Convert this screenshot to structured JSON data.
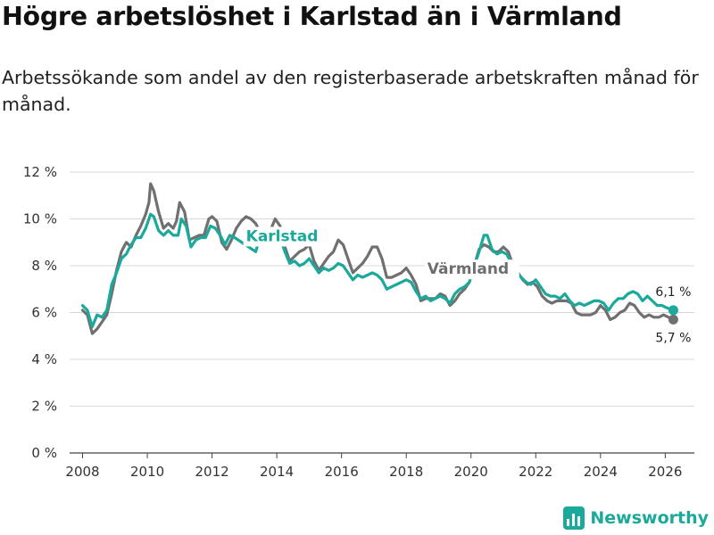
{
  "title": "Högre arbetslöshet i Karlstad än i Värmland",
  "subtitle": "Arbetssökande som andel av den registerbaserade arbetskraften månad för månad.",
  "brand": "Newsworthy",
  "colors": {
    "karlstad": "#1aa99b",
    "varmland": "#707070",
    "grid": "#d8d8d8"
  },
  "chart_data": {
    "type": "line",
    "title": "Högre arbetslöshet i Karlstad än i Värmland",
    "xlabel": "",
    "ylabel": "",
    "xlim": [
      2007.6,
      2026.9
    ],
    "ylim": [
      0,
      12
    ],
    "x_ticks": [
      2008,
      2010,
      2012,
      2014,
      2016,
      2018,
      2020,
      2022,
      2024,
      2026
    ],
    "x_tick_labels": [
      "2008",
      "2010",
      "2012",
      "2014",
      "2016",
      "2018",
      "2020",
      "2022",
      "2024",
      "2026"
    ],
    "y_ticks": [
      0,
      2,
      4,
      6,
      8,
      10,
      12
    ],
    "y_tick_labels": [
      "0 %",
      "2 %",
      "4 %",
      "6 %",
      "8 %",
      "10 %",
      "12 %"
    ],
    "series": [
      {
        "name": "Värmland",
        "label": "Värmland",
        "color": "#707070",
        "end_label": "5,7 %",
        "points": [
          [
            2008.0,
            6.1
          ],
          [
            2008.15,
            5.9
          ],
          [
            2008.3,
            5.1
          ],
          [
            2008.45,
            5.3
          ],
          [
            2008.6,
            5.6
          ],
          [
            2008.75,
            5.9
          ],
          [
            2008.9,
            6.8
          ],
          [
            2009.05,
            7.8
          ],
          [
            2009.2,
            8.6
          ],
          [
            2009.35,
            9.0
          ],
          [
            2009.5,
            8.8
          ],
          [
            2009.65,
            9.3
          ],
          [
            2009.8,
            9.7
          ],
          [
            2009.95,
            10.2
          ],
          [
            2010.05,
            10.7
          ],
          [
            2010.1,
            11.5
          ],
          [
            2010.2,
            11.2
          ],
          [
            2010.35,
            10.3
          ],
          [
            2010.5,
            9.6
          ],
          [
            2010.65,
            9.8
          ],
          [
            2010.8,
            9.6
          ],
          [
            2010.9,
            9.9
          ],
          [
            2011.0,
            10.7
          ],
          [
            2011.15,
            10.3
          ],
          [
            2011.3,
            9.1
          ],
          [
            2011.45,
            9.2
          ],
          [
            2011.6,
            9.3
          ],
          [
            2011.75,
            9.3
          ],
          [
            2011.9,
            10.0
          ],
          [
            2012.0,
            10.1
          ],
          [
            2012.15,
            9.9
          ],
          [
            2012.3,
            9.0
          ],
          [
            2012.45,
            8.7
          ],
          [
            2012.6,
            9.1
          ],
          [
            2012.75,
            9.6
          ],
          [
            2012.9,
            9.9
          ],
          [
            2013.05,
            10.1
          ],
          [
            2013.2,
            10.0
          ],
          [
            2013.35,
            9.8
          ],
          [
            2013.5,
            9.4
          ],
          [
            2013.65,
            9.2
          ],
          [
            2013.8,
            9.5
          ],
          [
            2013.95,
            10.0
          ],
          [
            2014.1,
            9.7
          ],
          [
            2014.25,
            8.8
          ],
          [
            2014.4,
            8.2
          ],
          [
            2014.55,
            8.4
          ],
          [
            2014.7,
            8.6
          ],
          [
            2014.85,
            8.7
          ],
          [
            2015.0,
            8.9
          ],
          [
            2015.15,
            8.2
          ],
          [
            2015.3,
            7.8
          ],
          [
            2015.45,
            8.1
          ],
          [
            2015.6,
            8.4
          ],
          [
            2015.75,
            8.6
          ],
          [
            2015.9,
            9.1
          ],
          [
            2016.05,
            8.9
          ],
          [
            2016.2,
            8.3
          ],
          [
            2016.35,
            7.7
          ],
          [
            2016.5,
            7.9
          ],
          [
            2016.65,
            8.1
          ],
          [
            2016.8,
            8.4
          ],
          [
            2016.95,
            8.8
          ],
          [
            2017.1,
            8.8
          ],
          [
            2017.25,
            8.3
          ],
          [
            2017.4,
            7.5
          ],
          [
            2017.55,
            7.5
          ],
          [
            2017.7,
            7.6
          ],
          [
            2017.85,
            7.7
          ],
          [
            2018.0,
            7.9
          ],
          [
            2018.15,
            7.6
          ],
          [
            2018.3,
            7.2
          ],
          [
            2018.45,
            6.5
          ],
          [
            2018.6,
            6.6
          ],
          [
            2018.75,
            6.6
          ],
          [
            2018.9,
            6.6
          ],
          [
            2019.05,
            6.8
          ],
          [
            2019.2,
            6.7
          ],
          [
            2019.35,
            6.3
          ],
          [
            2019.5,
            6.5
          ],
          [
            2019.65,
            6.8
          ],
          [
            2019.8,
            7.0
          ],
          [
            2019.95,
            7.3
          ],
          [
            2020.1,
            8.0
          ],
          [
            2020.25,
            8.7
          ],
          [
            2020.4,
            8.9
          ],
          [
            2020.55,
            8.8
          ],
          [
            2020.7,
            8.6
          ],
          [
            2020.85,
            8.6
          ],
          [
            2021.0,
            8.8
          ],
          [
            2021.15,
            8.6
          ],
          [
            2021.3,
            8.0
          ],
          [
            2021.45,
            7.7
          ],
          [
            2021.6,
            7.4
          ],
          [
            2021.75,
            7.2
          ],
          [
            2021.9,
            7.3
          ],
          [
            2022.05,
            7.1
          ],
          [
            2022.2,
            6.7
          ],
          [
            2022.35,
            6.5
          ],
          [
            2022.5,
            6.4
          ],
          [
            2022.65,
            6.5
          ],
          [
            2022.8,
            6.5
          ],
          [
            2022.95,
            6.5
          ],
          [
            2023.1,
            6.4
          ],
          [
            2023.25,
            6.0
          ],
          [
            2023.4,
            5.9
          ],
          [
            2023.55,
            5.9
          ],
          [
            2023.7,
            5.9
          ],
          [
            2023.85,
            6.0
          ],
          [
            2024.0,
            6.3
          ],
          [
            2024.15,
            6.1
          ],
          [
            2024.3,
            5.7
          ],
          [
            2024.45,
            5.8
          ],
          [
            2024.6,
            6.0
          ],
          [
            2024.75,
            6.1
          ],
          [
            2024.9,
            6.4
          ],
          [
            2025.05,
            6.3
          ],
          [
            2025.2,
            6.0
          ],
          [
            2025.35,
            5.8
          ],
          [
            2025.5,
            5.9
          ],
          [
            2025.65,
            5.8
          ],
          [
            2025.8,
            5.8
          ],
          [
            2025.95,
            5.9
          ],
          [
            2026.1,
            5.8
          ],
          [
            2026.25,
            5.7
          ]
        ]
      },
      {
        "name": "Karlstad",
        "label": "Karlstad",
        "color": "#1aa99b",
        "end_label": "6,1 %",
        "points": [
          [
            2008.0,
            6.3
          ],
          [
            2008.15,
            6.1
          ],
          [
            2008.3,
            5.4
          ],
          [
            2008.45,
            5.9
          ],
          [
            2008.6,
            5.8
          ],
          [
            2008.75,
            6.1
          ],
          [
            2008.9,
            7.2
          ],
          [
            2009.05,
            7.7
          ],
          [
            2009.2,
            8.3
          ],
          [
            2009.35,
            8.5
          ],
          [
            2009.5,
            8.9
          ],
          [
            2009.65,
            9.2
          ],
          [
            2009.8,
            9.2
          ],
          [
            2009.95,
            9.6
          ],
          [
            2010.1,
            10.2
          ],
          [
            2010.2,
            10.1
          ],
          [
            2010.35,
            9.5
          ],
          [
            2010.5,
            9.3
          ],
          [
            2010.65,
            9.5
          ],
          [
            2010.8,
            9.3
          ],
          [
            2010.95,
            9.3
          ],
          [
            2011.05,
            10.0
          ],
          [
            2011.2,
            9.7
          ],
          [
            2011.35,
            8.8
          ],
          [
            2011.5,
            9.1
          ],
          [
            2011.65,
            9.2
          ],
          [
            2011.8,
            9.2
          ],
          [
            2011.95,
            9.7
          ],
          [
            2012.1,
            9.6
          ],
          [
            2012.25,
            9.3
          ],
          [
            2012.4,
            8.9
          ],
          [
            2012.55,
            9.3
          ],
          [
            2012.7,
            9.2
          ],
          [
            2013.35,
            8.6
          ],
          [
            2013.5,
            9.3
          ],
          [
            2013.65,
            9.1
          ],
          [
            2013.8,
            9.1
          ],
          [
            2013.95,
            9.5
          ],
          [
            2014.1,
            9.2
          ],
          [
            2014.25,
            8.6
          ],
          [
            2014.4,
            8.1
          ],
          [
            2014.55,
            8.2
          ],
          [
            2014.7,
            8.0
          ],
          [
            2014.85,
            8.1
          ],
          [
            2015.0,
            8.3
          ],
          [
            2015.15,
            8.0
          ],
          [
            2015.3,
            7.7
          ],
          [
            2015.45,
            7.9
          ],
          [
            2015.6,
            7.8
          ],
          [
            2015.75,
            7.9
          ],
          [
            2015.9,
            8.1
          ],
          [
            2016.05,
            8.0
          ],
          [
            2016.2,
            7.7
          ],
          [
            2016.35,
            7.4
          ],
          [
            2016.5,
            7.6
          ],
          [
            2016.65,
            7.5
          ],
          [
            2016.8,
            7.6
          ],
          [
            2016.95,
            7.7
          ],
          [
            2017.1,
            7.6
          ],
          [
            2017.25,
            7.4
          ],
          [
            2017.4,
            7.0
          ],
          [
            2017.55,
            7.1
          ],
          [
            2017.7,
            7.2
          ],
          [
            2017.85,
            7.3
          ],
          [
            2018.0,
            7.4
          ],
          [
            2018.15,
            7.3
          ],
          [
            2018.3,
            6.9
          ],
          [
            2018.45,
            6.6
          ],
          [
            2018.6,
            6.7
          ],
          [
            2018.75,
            6.5
          ],
          [
            2018.9,
            6.6
          ],
          [
            2019.05,
            6.7
          ],
          [
            2019.2,
            6.6
          ],
          [
            2019.35,
            6.4
          ],
          [
            2019.5,
            6.8
          ],
          [
            2019.65,
            7.0
          ],
          [
            2019.8,
            7.1
          ],
          [
            2019.95,
            7.3
          ],
          [
            2020.1,
            8.0
          ],
          [
            2020.25,
            8.6
          ],
          [
            2020.4,
            9.3
          ],
          [
            2020.5,
            9.3
          ],
          [
            2020.65,
            8.7
          ],
          [
            2020.8,
            8.5
          ],
          [
            2020.95,
            8.6
          ],
          [
            2021.1,
            8.5
          ],
          [
            2021.25,
            8.1
          ],
          [
            2021.4,
            7.7
          ],
          [
            2021.55,
            7.5
          ],
          [
            2021.7,
            7.3
          ],
          [
            2021.85,
            7.2
          ],
          [
            2022.0,
            7.4
          ],
          [
            2022.15,
            7.1
          ],
          [
            2022.3,
            6.8
          ],
          [
            2022.45,
            6.7
          ],
          [
            2022.6,
            6.7
          ],
          [
            2022.75,
            6.6
          ],
          [
            2022.9,
            6.8
          ],
          [
            2023.05,
            6.5
          ],
          [
            2023.2,
            6.3
          ],
          [
            2023.35,
            6.4
          ],
          [
            2023.5,
            6.3
          ],
          [
            2023.65,
            6.4
          ],
          [
            2023.8,
            6.5
          ],
          [
            2023.95,
            6.5
          ],
          [
            2024.1,
            6.4
          ],
          [
            2024.25,
            6.1
          ],
          [
            2024.4,
            6.4
          ],
          [
            2024.55,
            6.6
          ],
          [
            2024.7,
            6.6
          ],
          [
            2024.85,
            6.8
          ],
          [
            2025.0,
            6.9
          ],
          [
            2025.15,
            6.8
          ],
          [
            2025.3,
            6.5
          ],
          [
            2025.45,
            6.7
          ],
          [
            2025.6,
            6.5
          ],
          [
            2025.75,
            6.3
          ],
          [
            2025.9,
            6.3
          ],
          [
            2026.05,
            6.2
          ],
          [
            2026.25,
            6.1
          ]
        ]
      }
    ]
  }
}
